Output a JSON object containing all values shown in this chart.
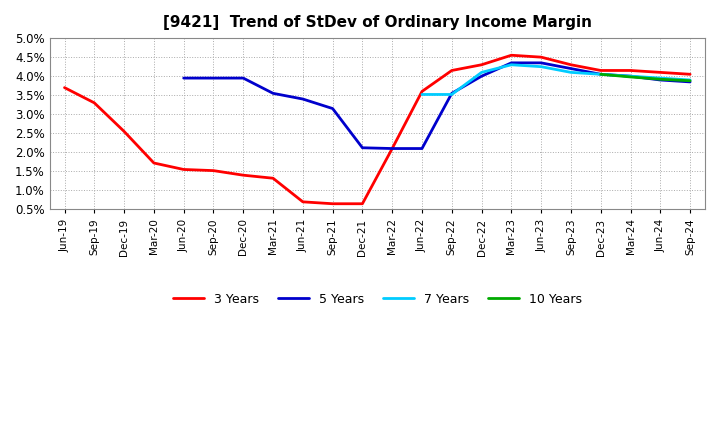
{
  "title": "[9421]  Trend of StDev of Ordinary Income Margin",
  "x_labels": [
    "Jun-19",
    "Sep-19",
    "Dec-19",
    "Mar-20",
    "Jun-20",
    "Sep-20",
    "Dec-20",
    "Mar-21",
    "Jun-21",
    "Sep-21",
    "Dec-21",
    "Mar-22",
    "Jun-22",
    "Sep-22",
    "Dec-22",
    "Mar-23",
    "Jun-23",
    "Sep-23",
    "Dec-23",
    "Mar-24",
    "Jun-24",
    "Sep-24"
  ],
  "series": {
    "3 Years": {
      "color": "#FF0000",
      "data": [
        3.7,
        3.3,
        2.55,
        1.72,
        1.55,
        1.52,
        1.4,
        1.32,
        0.7,
        0.65,
        0.65,
        2.1,
        3.6,
        4.15,
        4.3,
        4.55,
        4.5,
        4.3,
        4.15,
        4.15,
        4.1,
        4.05
      ]
    },
    "5 Years": {
      "color": "#0000CC",
      "data": [
        null,
        null,
        null,
        null,
        3.95,
        3.95,
        3.95,
        3.55,
        3.4,
        3.15,
        2.12,
        2.1,
        2.1,
        3.55,
        4.0,
        4.35,
        4.35,
        4.2,
        4.05,
        4.0,
        3.9,
        3.85
      ]
    },
    "7 Years": {
      "color": "#00CCFF",
      "data": [
        null,
        null,
        null,
        null,
        null,
        null,
        null,
        null,
        null,
        null,
        null,
        null,
        3.52,
        3.52,
        4.1,
        4.3,
        4.25,
        4.1,
        4.05,
        4.0,
        3.95,
        3.9
      ]
    },
    "10 Years": {
      "color": "#00AA00",
      "data": [
        null,
        null,
        null,
        null,
        null,
        null,
        null,
        null,
        null,
        null,
        null,
        null,
        null,
        null,
        null,
        null,
        null,
        null,
        4.05,
        3.98,
        3.92,
        3.88
      ]
    }
  },
  "ylim_min": 0.5,
  "ylim_max": 5.0,
  "yticks": [
    0.5,
    1.0,
    1.5,
    2.0,
    2.5,
    3.0,
    3.5,
    4.0,
    4.5,
    5.0
  ],
  "background_color": "#FFFFFF",
  "plot_bg_color": "#FFFFFF",
  "grid_color": "#AAAAAA",
  "linewidth": 2.0
}
